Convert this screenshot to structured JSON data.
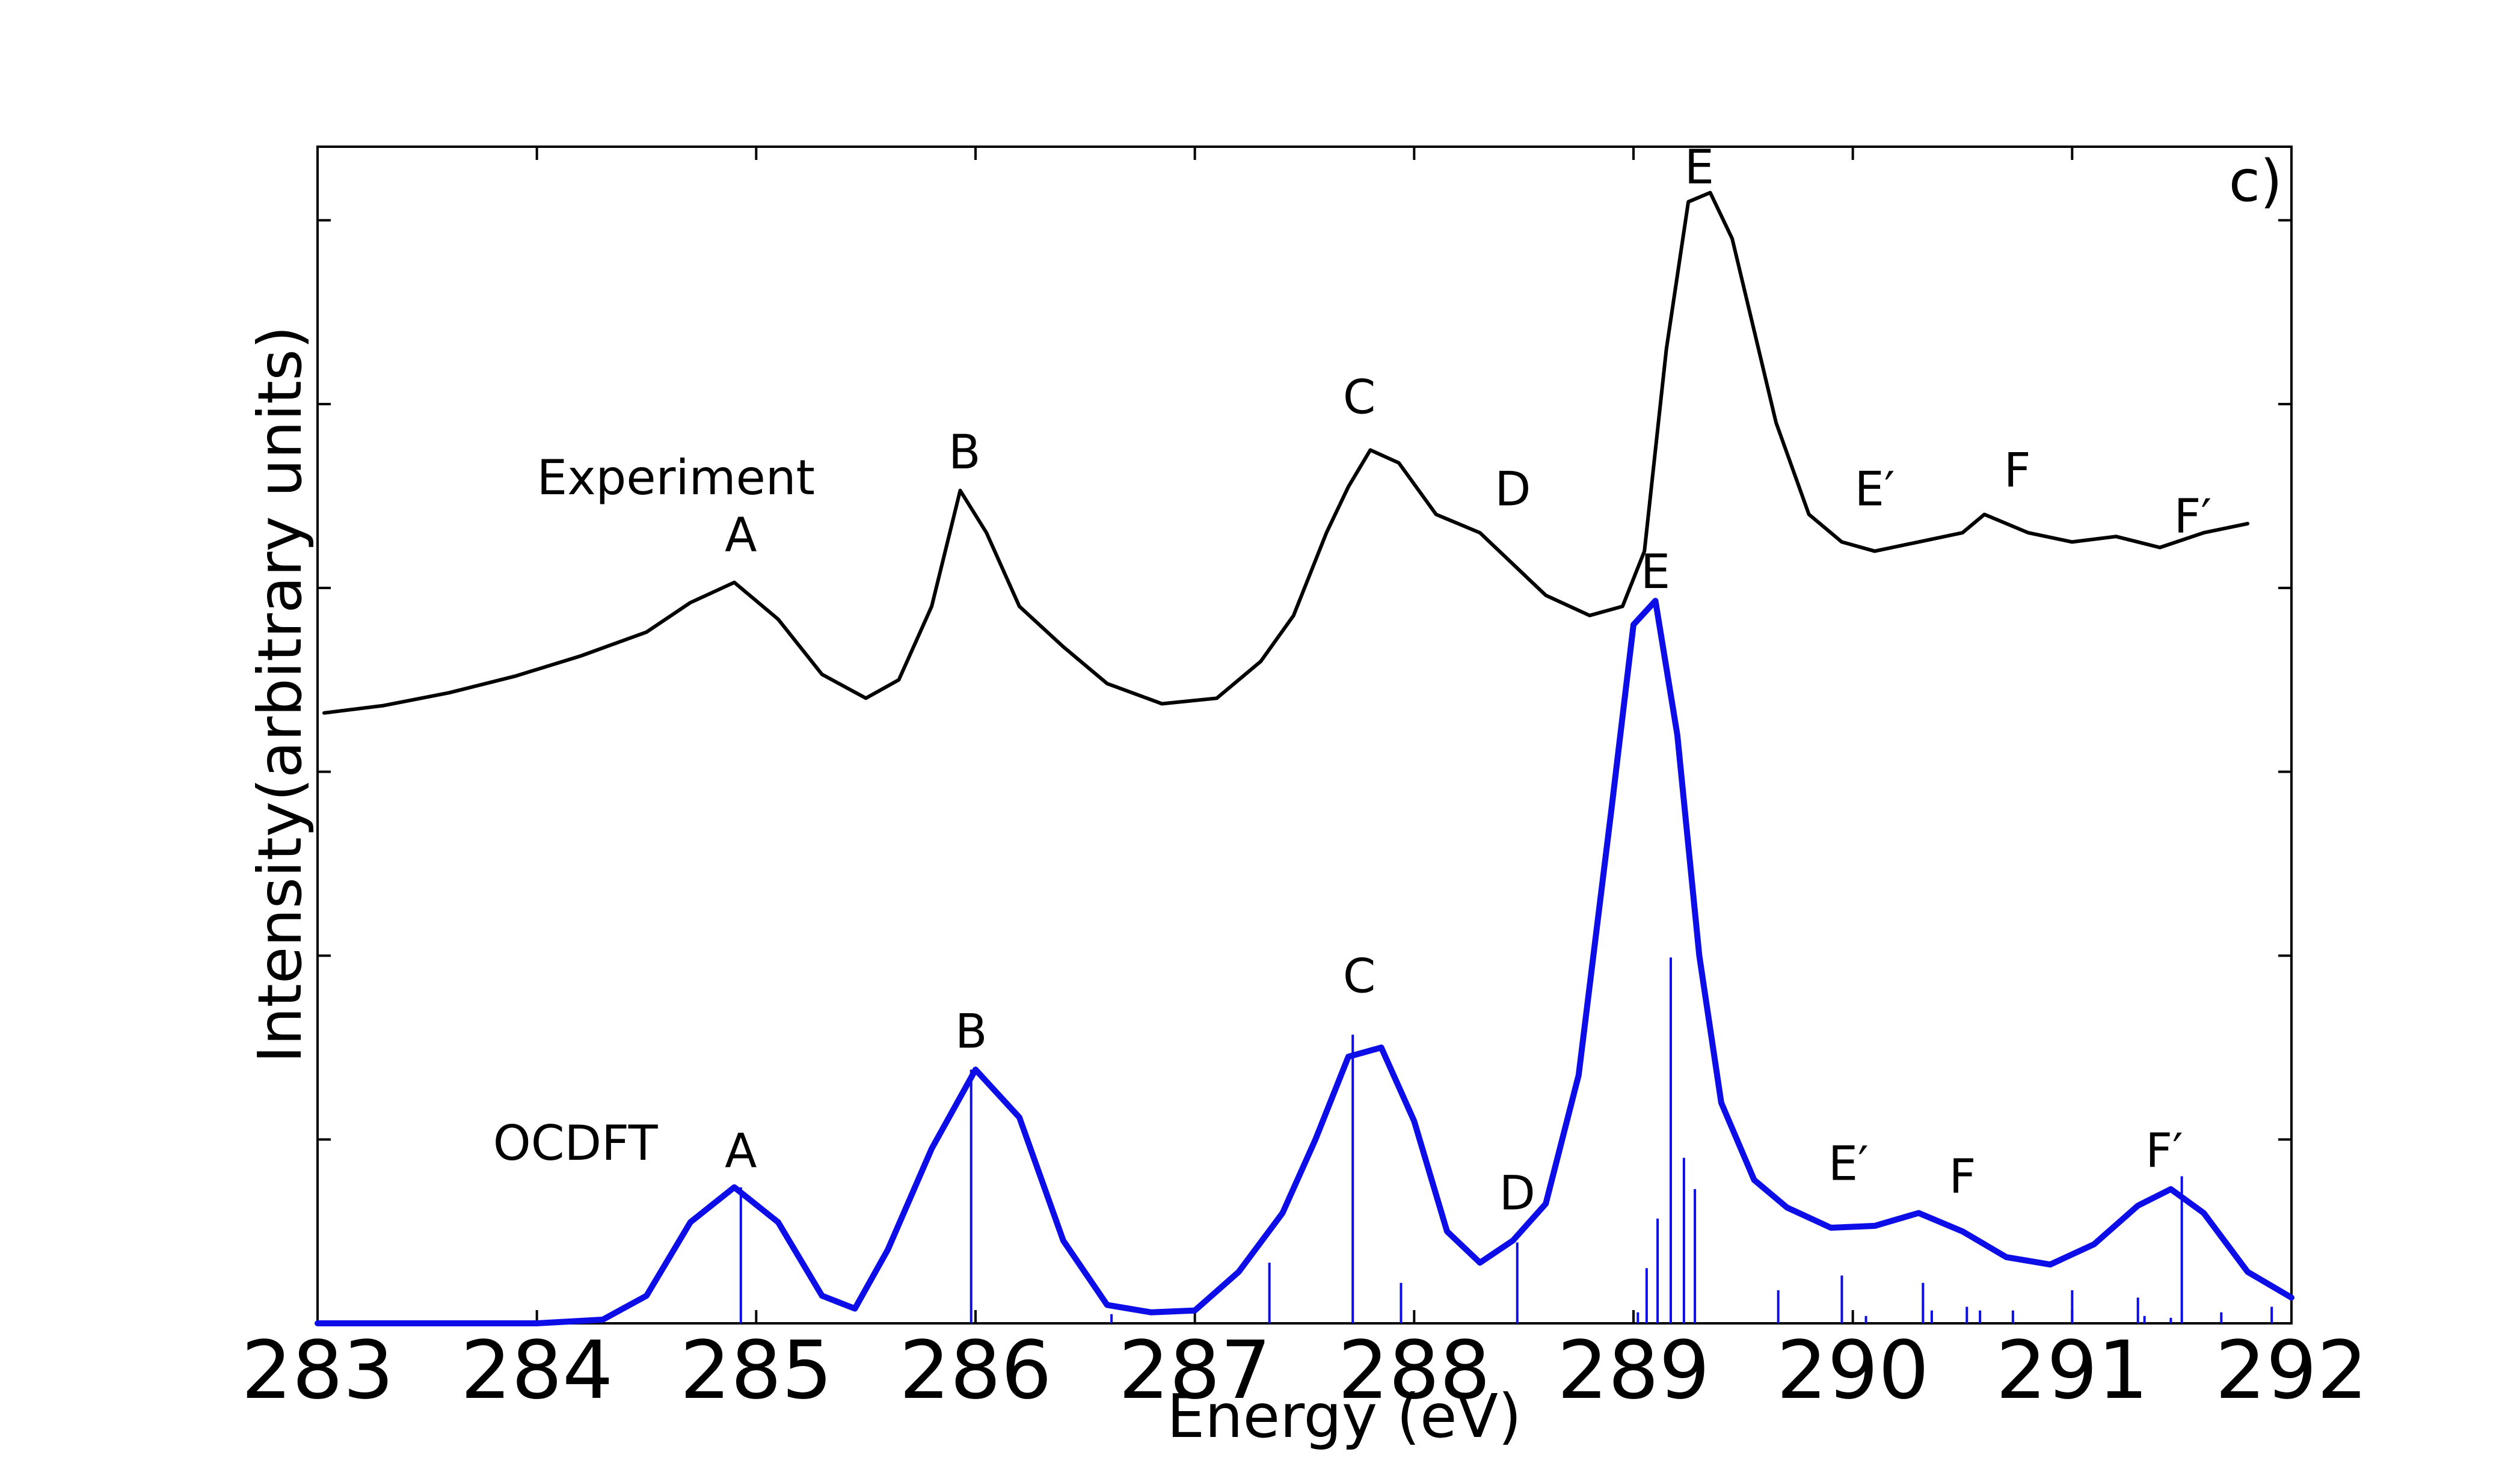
{
  "chart_data": {
    "type": "line",
    "panel_label": "c)",
    "xlabel": "Energy (eV)",
    "ylabel": "Intensity(arbitrary units)",
    "xlim": [
      283,
      292
    ],
    "ylim": [
      0,
      6.4
    ],
    "x_ticks": [
      "283",
      "284",
      "285",
      "286",
      "287",
      "288",
      "289",
      "290",
      "291",
      "292"
    ],
    "grid": false,
    "series": [
      {
        "name": "Experiment",
        "color": "#000000",
        "x": [
          283.03,
          283.3,
          283.6,
          283.9,
          284.2,
          284.5,
          284.7,
          284.9,
          285.1,
          285.3,
          285.5,
          285.65,
          285.8,
          285.93,
          286.05,
          286.2,
          286.4,
          286.6,
          286.85,
          287.1,
          287.3,
          287.45,
          287.6,
          287.7,
          287.8,
          287.93,
          288.1,
          288.3,
          288.45,
          288.6,
          288.8,
          288.95,
          289.05,
          289.15,
          289.25,
          289.35,
          289.45,
          289.55,
          289.65,
          289.8,
          289.95,
          290.1,
          290.3,
          290.5,
          290.6,
          290.8,
          291.0,
          291.2,
          291.4,
          291.6,
          291.8
        ],
        "y": [
          3.32,
          3.36,
          3.43,
          3.52,
          3.63,
          3.76,
          3.92,
          4.03,
          3.83,
          3.53,
          3.4,
          3.5,
          3.9,
          4.53,
          4.3,
          3.9,
          3.68,
          3.48,
          3.37,
          3.4,
          3.6,
          3.85,
          4.3,
          4.55,
          4.75,
          4.68,
          4.4,
          4.3,
          4.13,
          3.96,
          3.85,
          3.9,
          4.2,
          5.3,
          6.1,
          6.15,
          5.9,
          5.4,
          4.9,
          4.4,
          4.25,
          4.2,
          4.25,
          4.3,
          4.4,
          4.3,
          4.25,
          4.28,
          4.22,
          4.3,
          4.35
        ]
      },
      {
        "name": "OCDFT",
        "color": "#0d0de8",
        "x": [
          283.0,
          283.5,
          284.0,
          284.3,
          284.5,
          284.7,
          284.9,
          285.1,
          285.3,
          285.45,
          285.6,
          285.8,
          286.0,
          286.2,
          286.4,
          286.6,
          286.8,
          287.0,
          287.2,
          287.4,
          287.55,
          287.7,
          287.85,
          288.0,
          288.15,
          288.3,
          288.45,
          288.6,
          288.75,
          288.9,
          289.0,
          289.1,
          289.2,
          289.3,
          289.4,
          289.55,
          289.7,
          289.9,
          290.1,
          290.3,
          290.5,
          290.7,
          290.9,
          291.1,
          291.3,
          291.45,
          291.6,
          291.8,
          292.0
        ],
        "y": [
          0.0,
          0.0,
          0.0,
          0.02,
          0.15,
          0.55,
          0.74,
          0.55,
          0.15,
          0.08,
          0.4,
          0.95,
          1.38,
          1.12,
          0.45,
          0.1,
          0.06,
          0.07,
          0.28,
          0.6,
          1.0,
          1.45,
          1.5,
          1.1,
          0.5,
          0.33,
          0.45,
          0.65,
          1.35,
          2.8,
          3.8,
          3.93,
          3.2,
          2.0,
          1.2,
          0.78,
          0.63,
          0.52,
          0.53,
          0.6,
          0.5,
          0.36,
          0.32,
          0.43,
          0.64,
          0.73,
          0.6,
          0.28,
          0.14
        ]
      }
    ],
    "sticks": {
      "color": "#0d0de8",
      "x": [
        284.93,
        285.98,
        286.62,
        287.34,
        287.72,
        287.94,
        288.47,
        289.02,
        289.06,
        289.11,
        289.17,
        289.23,
        289.28,
        289.66,
        289.95,
        290.06,
        290.32,
        290.36,
        290.52,
        290.58,
        290.73,
        291.0,
        291.3,
        291.33,
        291.45,
        291.5,
        291.68,
        291.91
      ],
      "y": [
        0.74,
        1.38,
        0.05,
        0.33,
        1.57,
        0.22,
        0.44,
        0.06,
        0.3,
        0.57,
        1.99,
        0.9,
        0.73,
        0.18,
        0.26,
        0.04,
        0.22,
        0.07,
        0.09,
        0.07,
        0.07,
        0.18,
        0.14,
        0.04,
        0.03,
        0.8,
        0.06,
        0.09
      ]
    },
    "series_labels": [
      {
        "text": "Experiment",
        "series": "Experiment",
        "x": 284.0,
        "y": 4.51
      },
      {
        "text": "OCDFT",
        "series": "OCDFT",
        "x": 283.8,
        "y": 0.89
      }
    ],
    "annotations": [
      {
        "text": "A",
        "x": 284.93,
        "y": 4.2
      },
      {
        "text": "B",
        "x": 285.95,
        "y": 4.65
      },
      {
        "text": "C",
        "x": 287.75,
        "y": 4.95
      },
      {
        "text": "D",
        "x": 288.45,
        "y": 4.45
      },
      {
        "text": "E",
        "x": 289.3,
        "y": 6.2
      },
      {
        "text": "E′",
        "x": 290.1,
        "y": 4.45
      },
      {
        "text": "F",
        "x": 290.75,
        "y": 4.55
      },
      {
        "text": "F′",
        "x": 291.55,
        "y": 4.3
      },
      {
        "text": "A",
        "x": 284.93,
        "y": 0.85
      },
      {
        "text": "B",
        "x": 285.98,
        "y": 1.5
      },
      {
        "text": "C",
        "x": 287.75,
        "y": 1.8
      },
      {
        "text": "D",
        "x": 288.47,
        "y": 0.62
      },
      {
        "text": "E",
        "x": 289.1,
        "y": 4.0
      },
      {
        "text": "E′",
        "x": 289.98,
        "y": 0.78
      },
      {
        "text": "F",
        "x": 290.5,
        "y": 0.71
      },
      {
        "text": "F′",
        "x": 291.42,
        "y": 0.85
      }
    ]
  }
}
